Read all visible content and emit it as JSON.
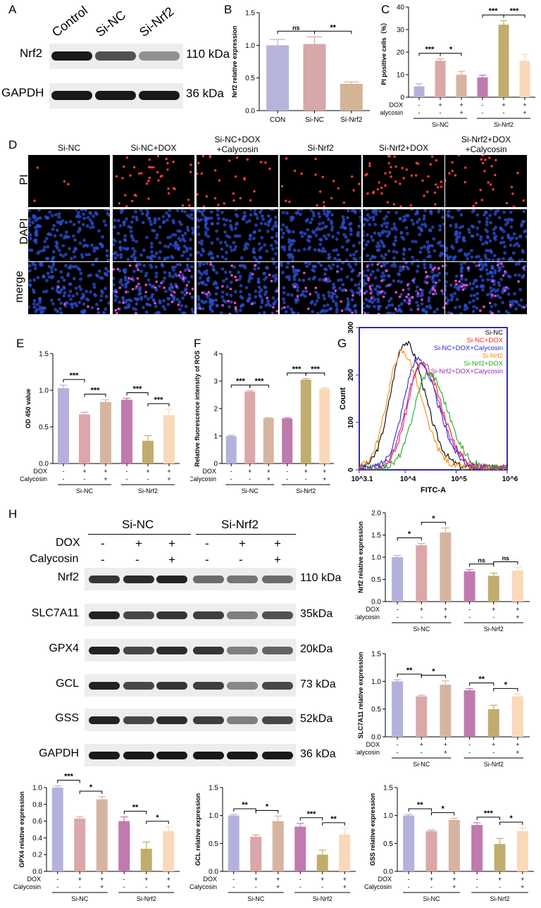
{
  "panel_letters": {
    "a": "A",
    "b": "B",
    "c": "C",
    "d": "D",
    "e": "E",
    "f": "F",
    "g": "G",
    "h": "H"
  },
  "colors": {
    "con": "#b7b4dc",
    "sinc": "#d8a7a7",
    "sinrf2": "#d4b497",
    "c1": "#b4b2dd",
    "c2": "#dba7a8",
    "c3": "#d6b5a0",
    "c4": "#c07aad",
    "c5": "#c0ad6e",
    "c6": "#fad9b8",
    "pi": "#ff3a3a",
    "dapi": "#2e4fd6"
  },
  "panelA": {
    "lanes": [
      "Control",
      "Si-NC",
      "Si-Nrf2"
    ],
    "rows": [
      {
        "label": "Nrf2",
        "size": "110 kDa",
        "intensity": [
          1.0,
          0.7,
          0.35
        ]
      },
      {
        "label": "GAPDH",
        "size": "36 kDa",
        "intensity": [
          1.0,
          1.0,
          1.0
        ]
      }
    ]
  },
  "panelD": {
    "cols": [
      "Si-NC",
      "Si-NC+DOX",
      "Si-NC+DOX\n+Calycosin",
      "Si-Nrf2",
      "Si-Nrf2+DOX",
      "Si-Nrf2+DOX\n+Calycosin"
    ],
    "col_lines": [
      [
        "Si-NC"
      ],
      [
        "Si-NC+DOX"
      ],
      [
        "Si-NC+DOX",
        "+Calycosin"
      ],
      [
        "Si-Nrf2"
      ],
      [
        "Si-Nrf2+DOX"
      ],
      [
        "Si-Nrf2+DOX",
        "+Calycosin"
      ]
    ],
    "rows": [
      "PI",
      "DAPI",
      "merge"
    ]
  },
  "panelH": {
    "groups": [
      "Si-NC",
      "Si-Nrf2"
    ],
    "dox_label": "DOX",
    "caly_label": "Calycosin",
    "dox_signs": [
      "-",
      "+",
      "+",
      "-",
      "+",
      "+"
    ],
    "caly_signs": [
      "-",
      "-",
      "+",
      "-",
      "-",
      "+"
    ],
    "rows": [
      {
        "label": "Nrf2",
        "size": "110 kDa",
        "intensity": [
          0.85,
          0.9,
          0.95,
          0.55,
          0.5,
          0.55
        ]
      },
      {
        "label": "SLC7A11",
        "size": "35kDa",
        "intensity": [
          0.95,
          0.75,
          0.85,
          0.8,
          0.45,
          0.7
        ]
      },
      {
        "label": "GPX4",
        "size": "20kDa",
        "intensity": [
          0.95,
          0.75,
          0.9,
          0.85,
          0.45,
          0.6
        ]
      },
      {
        "label": "GCL",
        "size": "73 kDa",
        "intensity": [
          0.95,
          0.75,
          0.85,
          0.8,
          0.4,
          0.75
        ]
      },
      {
        "label": "GSS",
        "size": "52kDa",
        "intensity": [
          0.95,
          0.75,
          0.9,
          0.8,
          0.45,
          0.75
        ]
      },
      {
        "label": "GAPDH",
        "size": "36 kDa",
        "intensity": [
          1.0,
          1.0,
          1.0,
          1.0,
          1.0,
          1.0
        ]
      }
    ]
  },
  "chart_data": [
    {
      "id": "B",
      "type": "bar",
      "ylabel": "Nrf2 relative expression",
      "ylim": [
        0,
        1.5
      ],
      "yticks": [
        0.0,
        0.5,
        1.0,
        1.5
      ],
      "categories": [
        "CON",
        "Si-NC",
        "Si-Nrf2"
      ],
      "values": [
        1.0,
        1.02,
        0.41
      ],
      "errors": [
        0.09,
        0.11,
        0.03
      ],
      "colorKeys": [
        "con",
        "sinc",
        "sinrf2"
      ],
      "sig": [
        {
          "from": 0,
          "to": 1,
          "label": "ns"
        },
        {
          "from": 1,
          "to": 2,
          "label": "**"
        }
      ]
    },
    {
      "id": "C",
      "type": "bar",
      "ylabel": "PI positive cells（%）",
      "ylim": [
        0,
        40
      ],
      "yticks": [
        0,
        10,
        20,
        30,
        40
      ],
      "values": [
        4.8,
        16.2,
        10.0,
        8.8,
        32.2,
        16.2
      ],
      "errors": [
        1.2,
        0.8,
        1.5,
        1.0,
        1.8,
        2.7
      ],
      "groups": [
        "Si-NC",
        "Si-Nrf2"
      ],
      "treat_labels": [
        "DOX",
        "Calycosin"
      ],
      "sig": [
        {
          "from": 0,
          "to": 1,
          "label": "***"
        },
        {
          "from": 1,
          "to": 2,
          "label": "*"
        },
        {
          "from": 3,
          "to": 4,
          "label": "***"
        },
        {
          "from": 4,
          "to": 5,
          "label": "***"
        }
      ]
    },
    {
      "id": "E",
      "type": "bar",
      "ylabel": "OD 450 value",
      "ylim": [
        0,
        1.5
      ],
      "yticks": [
        0.0,
        0.5,
        1.0,
        1.5
      ],
      "values": [
        1.03,
        0.67,
        0.84,
        0.87,
        0.31,
        0.66
      ],
      "errors": [
        0.04,
        0.03,
        0.03,
        0.02,
        0.07,
        0.08
      ],
      "groups": [
        "Si-NC",
        "Si-Nrf2"
      ],
      "treat_labels": [
        "DOX",
        "Calycosin"
      ],
      "sig": [
        {
          "from": 0,
          "to": 1,
          "label": "***"
        },
        {
          "from": 1,
          "to": 2,
          "label": "***"
        },
        {
          "from": 3,
          "to": 4,
          "label": "***"
        },
        {
          "from": 4,
          "to": 5,
          "label": "***"
        }
      ]
    },
    {
      "id": "F",
      "type": "bar",
      "ylabel": "Relative fluorescence intensity of ROS",
      "ylim": [
        0,
        4
      ],
      "yticks": [
        0,
        1,
        2,
        3,
        4
      ],
      "values": [
        1.0,
        2.62,
        1.65,
        1.64,
        3.05,
        2.73
      ],
      "errors": [
        0.03,
        0.03,
        0.02,
        0.03,
        0.04,
        0.03
      ],
      "groups": [
        "Si-NC",
        "Si-Nrf2"
      ],
      "treat_labels": [
        "DOX",
        "Calycosin"
      ],
      "sig": [
        {
          "from": 0,
          "to": 1,
          "label": "***"
        },
        {
          "from": 1,
          "to": 2,
          "label": "***"
        },
        {
          "from": 3,
          "to": 4,
          "label": "***"
        },
        {
          "from": 4,
          "to": 5,
          "label": "***"
        }
      ]
    },
    {
      "id": "G",
      "type": "line",
      "xlabel": "FITC-A",
      "ylabel": "Count",
      "xlim": [
        3.1,
        6
      ],
      "ylim": [
        0,
        300
      ],
      "xticks": [
        "10^3.1",
        "10^4",
        "10^5",
        "10^6"
      ],
      "yticks": [
        0,
        100,
        200,
        300
      ],
      "series": [
        {
          "name": "Si-NC",
          "color": "#000000",
          "peak_x": 4.0,
          "peak_y": 265
        },
        {
          "name": "Si-NC+DOX",
          "color": "#ff2020",
          "peak_x": 4.33,
          "peak_y": 220
        },
        {
          "name": "Si-NC+DOX+Calycosin",
          "color": "#2a2ad0",
          "peak_x": 4.25,
          "peak_y": 230
        },
        {
          "name": "Si-Nrf2",
          "color": "#ff8c00",
          "peak_x": 3.93,
          "peak_y": 245
        },
        {
          "name": "Si-Nrf2+DOX",
          "color": "#22aa22",
          "peak_x": 4.45,
          "peak_y": 200
        },
        {
          "name": "Si-Nrf2+DOX+Calycosin",
          "color": "#9a28c4",
          "peak_x": 4.3,
          "peak_y": 215
        }
      ]
    },
    {
      "id": "H_Nrf2",
      "type": "bar",
      "ylabel": "Nrf2 relative expression",
      "ylim": [
        0,
        2.0
      ],
      "yticks": [
        0.0,
        0.5,
        1.0,
        1.5,
        2.0
      ],
      "values": [
        1.0,
        1.27,
        1.56,
        0.68,
        0.58,
        0.7
      ],
      "errors": [
        0.04,
        0.04,
        0.1,
        0.04,
        0.06,
        0.07
      ],
      "groups": [
        "Si-NC",
        "Si-Nrf2"
      ],
      "treat_labels": [
        "DOX",
        "Calycosin"
      ],
      "sig": [
        {
          "from": 0,
          "to": 1,
          "label": "*"
        },
        {
          "from": 1,
          "to": 2,
          "label": "*"
        },
        {
          "from": 3,
          "to": 4,
          "label": "ns"
        },
        {
          "from": 4,
          "to": 5,
          "label": "ns"
        }
      ]
    },
    {
      "id": "H_SLC7A11",
      "type": "bar",
      "ylabel": "SLC7A11 relative expression",
      "ylim": [
        0,
        1.5
      ],
      "yticks": [
        0.0,
        0.5,
        1.0,
        1.5
      ],
      "values": [
        1.0,
        0.73,
        0.94,
        0.84,
        0.5,
        0.73
      ],
      "errors": [
        0.03,
        0.02,
        0.07,
        0.03,
        0.07,
        0.04
      ],
      "groups": [
        "Si-NC",
        "Si-Nrf2"
      ],
      "treat_labels": [
        "DOX",
        "Calycosin"
      ],
      "sig": [
        {
          "from": 0,
          "to": 1,
          "label": "**"
        },
        {
          "from": 1,
          "to": 2,
          "label": "*"
        },
        {
          "from": 3,
          "to": 4,
          "label": "**"
        },
        {
          "from": 4,
          "to": 5,
          "label": "*"
        }
      ]
    },
    {
      "id": "H_GPX4",
      "type": "bar",
      "ylabel": "GPX4 relative expression",
      "ylim": [
        0,
        1.0
      ],
      "yticks": [
        0.0,
        0.2,
        0.4,
        0.6,
        0.8,
        1.0
      ],
      "values": [
        1.0,
        0.63,
        0.86,
        0.6,
        0.27,
        0.48
      ],
      "errors": [
        0.02,
        0.02,
        0.03,
        0.05,
        0.08,
        0.05
      ],
      "groups": [
        "Si-NC",
        "Si-Nrf2"
      ],
      "treat_labels": [
        "DOX",
        "Calycosin"
      ],
      "sig": [
        {
          "from": 0,
          "to": 1,
          "label": "***"
        },
        {
          "from": 1,
          "to": 2,
          "label": "*"
        },
        {
          "from": 3,
          "to": 4,
          "label": "**"
        },
        {
          "from": 4,
          "to": 5,
          "label": "*"
        }
      ]
    },
    {
      "id": "H_GCL",
      "type": "bar",
      "ylabel": "GCL relative expression",
      "ylim": [
        0,
        1.5
      ],
      "yticks": [
        0.0,
        0.5,
        1.0,
        1.5
      ],
      "values": [
        1.0,
        0.62,
        0.9,
        0.8,
        0.3,
        0.66
      ],
      "errors": [
        0.02,
        0.03,
        0.09,
        0.06,
        0.08,
        0.11
      ],
      "groups": [
        "Si-NC",
        "Si-Nrf2"
      ],
      "treat_labels": [
        "DOX",
        "Calycosin"
      ],
      "sig": [
        {
          "from": 0,
          "to": 1,
          "label": "**"
        },
        {
          "from": 1,
          "to": 2,
          "label": "*"
        },
        {
          "from": 3,
          "to": 4,
          "label": "***"
        },
        {
          "from": 4,
          "to": 5,
          "label": "**"
        }
      ]
    },
    {
      "id": "H_GSS",
      "type": "bar",
      "ylabel": "GSS relative expression",
      "ylim": [
        0,
        1.5
      ],
      "yticks": [
        0.0,
        0.5,
        1.0,
        1.5
      ],
      "values": [
        1.0,
        0.72,
        0.92,
        0.83,
        0.49,
        0.72
      ],
      "errors": [
        0.02,
        0.02,
        0.03,
        0.04,
        0.1,
        0.06
      ],
      "groups": [
        "Si-NC",
        "Si-Nrf2"
      ],
      "treat_labels": [
        "DOX",
        "Calycosin"
      ],
      "sig": [
        {
          "from": 0,
          "to": 1,
          "label": "**"
        },
        {
          "from": 1,
          "to": 2,
          "label": "*"
        },
        {
          "from": 3,
          "to": 4,
          "label": "***"
        },
        {
          "from": 4,
          "to": 5,
          "label": "*"
        }
      ]
    }
  ]
}
